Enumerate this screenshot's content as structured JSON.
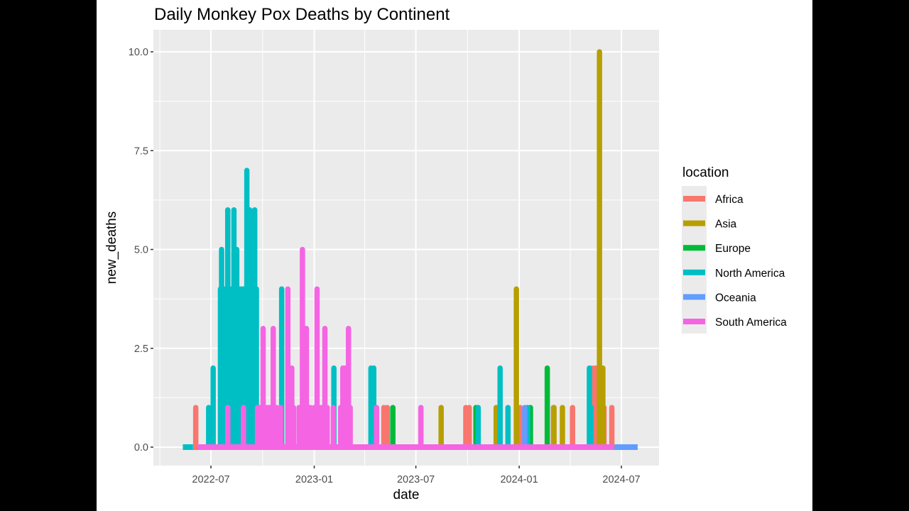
{
  "chart_data": {
    "type": "line",
    "geom": "vertical spike lines (thick, round caps) from 0 to value per day",
    "title": "Daily Monkey Pox Deaths by Continent",
    "xlabel": "date",
    "ylabel": "new_deaths",
    "x_ticks": [
      "2022-07",
      "2023-01",
      "2023-07",
      "2024-01",
      "2024-07"
    ],
    "y_ticks": [
      "0.0",
      "2.5",
      "5.0",
      "7.5",
      "10.0"
    ],
    "xlim": [
      "2022-04-10",
      "2024-09-05"
    ],
    "ylim": [
      -0.5,
      10.5
    ],
    "grid": true,
    "legend_title": "location",
    "legend_position": "right",
    "series": [
      {
        "name": "Africa",
        "color": "#F8766D",
        "baseline": [],
        "points": [
          [
            "2022-06-04",
            1
          ],
          [
            "2023-05-05",
            1
          ],
          [
            "2023-05-11",
            1
          ],
          [
            "2023-09-28",
            1
          ],
          [
            "2023-10-04",
            1
          ],
          [
            "2024-01-03",
            1
          ],
          [
            "2024-03-02",
            1
          ],
          [
            "2024-04-05",
            1
          ],
          [
            "2024-05-10",
            2
          ],
          [
            "2024-05-16",
            2
          ],
          [
            "2024-05-31",
            1
          ],
          [
            "2024-06-14",
            1
          ]
        ]
      },
      {
        "name": "Asia",
        "color": "#B79F00",
        "baseline": [],
        "points": [
          [
            "2023-08-15",
            1
          ],
          [
            "2023-11-21",
            1
          ],
          [
            "2023-12-27",
            4
          ],
          [
            "2024-03-03",
            1
          ],
          [
            "2024-03-18",
            1
          ],
          [
            "2024-05-23",
            10
          ],
          [
            "2024-05-29",
            2
          ]
        ]
      },
      {
        "name": "Europe",
        "color": "#00BA38",
        "baseline": [],
        "points": [
          [
            "2023-05-21",
            1
          ],
          [
            "2023-10-16",
            1
          ],
          [
            "2024-01-21",
            1
          ],
          [
            "2024-02-20",
            2
          ]
        ]
      },
      {
        "name": "North America",
        "color": "#00BFC4",
        "baseline": [
          [
            "2022-05-12",
            "2022-05-30"
          ]
        ],
        "points": [
          [
            "2022-06-27",
            1
          ],
          [
            "2022-07-05",
            2
          ],
          [
            "2022-07-18",
            4
          ],
          [
            "2022-07-20",
            5
          ],
          [
            "2022-07-22",
            4
          ],
          [
            "2022-07-25",
            4
          ],
          [
            "2022-07-28",
            4
          ],
          [
            "2022-07-31",
            6
          ],
          [
            "2022-08-03",
            4
          ],
          [
            "2022-08-05",
            4
          ],
          [
            "2022-08-08",
            4
          ],
          [
            "2022-08-11",
            6
          ],
          [
            "2022-08-14",
            5
          ],
          [
            "2022-08-16",
            5
          ],
          [
            "2022-08-19",
            4
          ],
          [
            "2022-08-22",
            4
          ],
          [
            "2022-08-25",
            4
          ],
          [
            "2022-08-28",
            4
          ],
          [
            "2022-08-31",
            4
          ],
          [
            "2022-09-03",
            7
          ],
          [
            "2022-09-06",
            4
          ],
          [
            "2022-09-08",
            6
          ],
          [
            "2022-09-11",
            4
          ],
          [
            "2022-09-14",
            4
          ],
          [
            "2022-09-17",
            6
          ],
          [
            "2022-09-20",
            4
          ],
          [
            "2022-10-16",
            1
          ],
          [
            "2022-11-04",
            4
          ],
          [
            "2023-02-05",
            2
          ],
          [
            "2023-04-12",
            2
          ],
          [
            "2023-04-17",
            2
          ],
          [
            "2023-10-20",
            1
          ],
          [
            "2023-11-28",
            2
          ],
          [
            "2023-12-12",
            1
          ],
          [
            "2024-01-16",
            1
          ],
          [
            "2024-05-05",
            2
          ],
          [
            "2024-05-08",
            1
          ]
        ]
      },
      {
        "name": "Oceania",
        "color": "#619CFF",
        "baseline": [
          [
            "2022-05-30",
            "2022-06-07"
          ],
          [
            "2024-06-17",
            "2024-07-30"
          ]
        ],
        "points": [
          [
            "2024-01-11",
            1
          ]
        ]
      },
      {
        "name": "South America",
        "color": "#F564E3",
        "baseline": [
          [
            "2022-06-07",
            "2024-06-17"
          ]
        ],
        "points": [
          [
            "2022-07-31",
            1
          ],
          [
            "2022-08-28",
            1
          ],
          [
            "2022-09-22",
            1
          ],
          [
            "2022-09-26",
            1
          ],
          [
            "2022-09-29",
            1
          ],
          [
            "2022-10-02",
            3
          ],
          [
            "2022-10-05",
            1
          ],
          [
            "2022-10-08",
            1
          ],
          [
            "2022-10-12",
            1
          ],
          [
            "2022-10-15",
            1
          ],
          [
            "2022-10-20",
            3
          ],
          [
            "2022-10-23",
            1
          ],
          [
            "2022-10-26",
            1
          ],
          [
            "2022-11-02",
            1
          ],
          [
            "2022-11-15",
            4
          ],
          [
            "2022-11-18",
            1
          ],
          [
            "2022-11-22",
            2
          ],
          [
            "2022-11-25",
            1
          ],
          [
            "2022-12-05",
            1
          ],
          [
            "2022-12-08",
            1
          ],
          [
            "2022-12-11",
            5
          ],
          [
            "2022-12-15",
            3
          ],
          [
            "2022-12-18",
            3
          ],
          [
            "2022-12-22",
            1
          ],
          [
            "2022-12-25",
            1
          ],
          [
            "2023-01-01",
            1
          ],
          [
            "2023-01-06",
            4
          ],
          [
            "2023-01-09",
            1
          ],
          [
            "2023-01-14",
            1
          ],
          [
            "2023-01-20",
            3
          ],
          [
            "2023-01-24",
            1
          ],
          [
            "2023-02-04",
            1
          ],
          [
            "2023-02-17",
            1
          ],
          [
            "2023-02-21",
            2
          ],
          [
            "2023-02-26",
            2
          ],
          [
            "2023-03-03",
            3
          ],
          [
            "2023-03-06",
            1
          ],
          [
            "2023-04-22",
            1
          ],
          [
            "2023-07-10",
            1
          ]
        ]
      }
    ]
  },
  "layout": {
    "panel_bg": "#EBEBEB",
    "grid_color": "#FFFFFF",
    "tick_color": "#333333",
    "tick_label_color": "#4D4D4D",
    "outer_bg": "#000000",
    "plot_bg": "#FFFFFF"
  }
}
